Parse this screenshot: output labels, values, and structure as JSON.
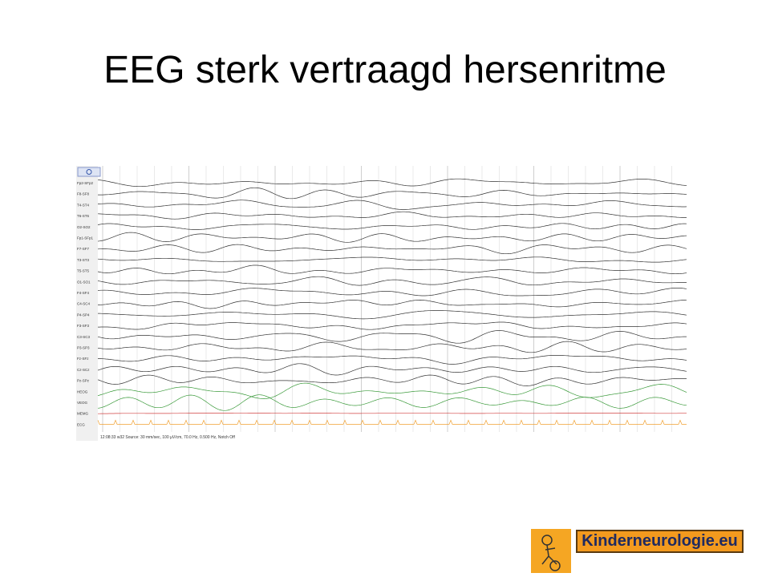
{
  "header": {
    "title": "EEG sterk vertraagd hersenritme"
  },
  "eeg": {
    "channels": [
      "Fp2-SFp2",
      "F8-SF8",
      "T4-ST4",
      "T6-ST6",
      "O2-SO2",
      "Fp1-SFp1",
      "F7-SF7",
      "T3-ST3",
      "T5-ST5",
      "O1-SO1",
      "F4-SF4",
      "C4-SC4",
      "P4-SP4",
      "F3-SF3",
      "C3-SC3",
      "P3-SP3",
      "Fz-SFz",
      "Cz-SCz",
      "Pz-SPz",
      "HEOG",
      "VEOG",
      "MEMG",
      "ECG"
    ],
    "footer": "12:08:33 w32 Source: 30 mm/sec, 100 µV/cm, 70.0 Hz, 0.500 Hz, Notch Off"
  },
  "logo": {
    "text": "Kinderneurologie.eu"
  }
}
